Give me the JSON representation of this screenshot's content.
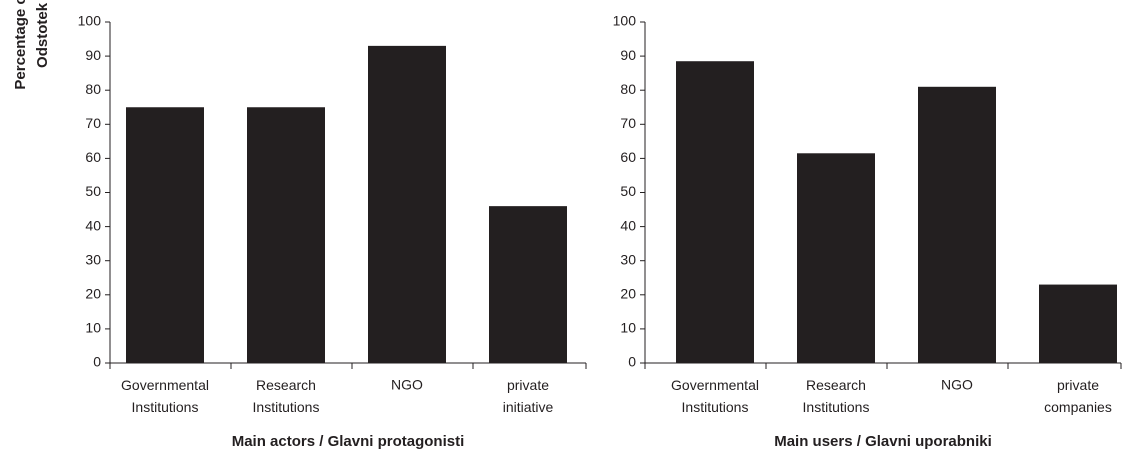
{
  "chart_data": [
    {
      "type": "bar",
      "x_label": "Main actors / Glavni protagonisti",
      "y_label": "Percentage of countries /\nOdstotek držav (%)",
      "categories": [
        "Governmental\nInstitutions",
        "Research\nInstitutions",
        "NGO",
        "private\ninitiative"
      ],
      "values": [
        75,
        75,
        93,
        46
      ],
      "color": "#231f20",
      "ylim": [
        0,
        100
      ],
      "yticks": [
        0,
        10,
        20,
        30,
        40,
        50,
        60,
        70,
        80,
        90,
        100
      ]
    },
    {
      "type": "bar",
      "x_label": "Main users / Glavni uporabniki",
      "categories": [
        "Governmental\nInstitutions",
        "Research\nInstitutions",
        "NGO",
        "private\ncompanies"
      ],
      "values": [
        88.5,
        61.5,
        81,
        23
      ],
      "color": "#231f20",
      "ylim": [
        0,
        100
      ],
      "yticks": [
        0,
        10,
        20,
        30,
        40,
        50,
        60,
        70,
        80,
        90,
        100
      ]
    }
  ]
}
